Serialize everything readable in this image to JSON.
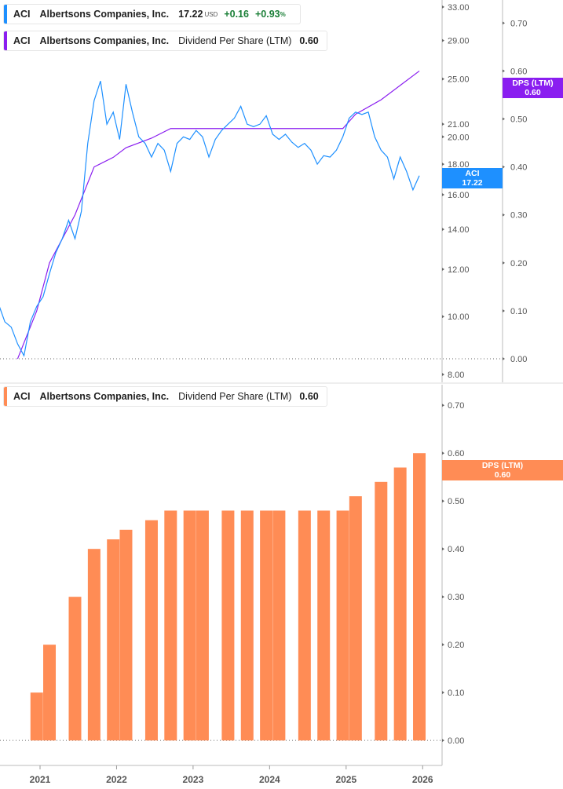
{
  "legend_price": {
    "ticker": "ACI",
    "company": "Albertsons Companies, Inc.",
    "price": "17.22",
    "currency": "USD",
    "change": "+0.16",
    "change_pct": "+0.93",
    "pct_sign": "%",
    "color": "#1e90ff"
  },
  "legend_dps_top": {
    "ticker": "ACI",
    "company": "Albertsons Companies, Inc.",
    "metric": "Dividend Per Share (LTM)",
    "value": "0.60",
    "color": "#8a1ef0"
  },
  "legend_dps_bottom": {
    "ticker": "ACI",
    "company": "Albertsons Companies, Inc.",
    "metric": "Dividend Per Share (LTM)",
    "value": "0.60",
    "color": "#ff8c55"
  },
  "tags": {
    "price": {
      "label": "ACI",
      "value": "17.22"
    },
    "dps_top": {
      "label": "DPS (LTM)",
      "value": "0.60"
    },
    "dps_bottom": {
      "label": "DPS (LTM)",
      "value": "0.60"
    }
  },
  "chart_data": [
    {
      "type": "line",
      "panel": "top",
      "scale": "log",
      "ylim": [
        7.76,
        33.9
      ],
      "yticks": [
        "33.00",
        "29.00",
        "25.00",
        "21.00",
        "20.00",
        "18.00",
        "16.00",
        "14.00",
        "12.00",
        "10.00",
        "8.00"
      ],
      "series": [
        {
          "name": "ACI",
          "color": "#1e90ff",
          "points": [
            [
              "2020-06",
              10.5
            ],
            [
              "2020-07",
              9.8
            ],
            [
              "2020-08",
              9.6
            ],
            [
              "2020-09",
              9.0
            ],
            [
              "2020-10",
              8.6
            ],
            [
              "2020-11",
              9.8
            ],
            [
              "2020-12",
              10.4
            ],
            [
              "2021-01",
              10.8
            ],
            [
              "2021-02",
              11.8
            ],
            [
              "2021-03",
              12.8
            ],
            [
              "2021-04",
              13.5
            ],
            [
              "2021-05",
              14.5
            ],
            [
              "2021-06",
              13.5
            ],
            [
              "2021-07",
              15.0
            ],
            [
              "2021-08",
              19.5
            ],
            [
              "2021-09",
              23.0
            ],
            [
              "2021-10",
              24.8
            ],
            [
              "2021-11",
              21.0
            ],
            [
              "2021-12",
              22.0
            ],
            [
              "2022-01",
              19.8
            ],
            [
              "2022-02",
              24.5
            ],
            [
              "2022-03",
              22.0
            ],
            [
              "2022-04",
              20.0
            ],
            [
              "2022-05",
              19.5
            ],
            [
              "2022-06",
              18.5
            ],
            [
              "2022-07",
              19.5
            ],
            [
              "2022-08",
              19.0
            ],
            [
              "2022-09",
              17.5
            ],
            [
              "2022-10",
              19.5
            ],
            [
              "2022-11",
              20.0
            ],
            [
              "2022-12",
              19.8
            ],
            [
              "2023-01",
              20.5
            ],
            [
              "2023-02",
              20.0
            ],
            [
              "2023-03",
              18.5
            ],
            [
              "2023-04",
              19.8
            ],
            [
              "2023-05",
              20.5
            ],
            [
              "2023-06",
              21.0
            ],
            [
              "2023-07",
              21.5
            ],
            [
              "2023-08",
              22.5
            ],
            [
              "2023-09",
              21.0
            ],
            [
              "2023-10",
              20.8
            ],
            [
              "2023-11",
              21.0
            ],
            [
              "2023-12",
              21.7
            ],
            [
              "2024-01",
              20.2
            ],
            [
              "2024-02",
              19.8
            ],
            [
              "2024-03",
              20.2
            ],
            [
              "2024-04",
              19.6
            ],
            [
              "2024-05",
              19.2
            ],
            [
              "2024-06",
              19.5
            ],
            [
              "2024-07",
              19.0
            ],
            [
              "2024-08",
              18.0
            ],
            [
              "2024-09",
              18.6
            ],
            [
              "2024-10",
              18.5
            ],
            [
              "2024-11",
              19.0
            ],
            [
              "2024-12",
              20.0
            ],
            [
              "2025-01",
              21.5
            ],
            [
              "2025-02",
              22.0
            ],
            [
              "2025-03",
              21.8
            ],
            [
              "2025-04",
              22.0
            ],
            [
              "2025-05",
              20.0
            ],
            [
              "2025-06",
              19.0
            ],
            [
              "2025-07",
              18.5
            ],
            [
              "2025-08",
              17.0
            ],
            [
              "2025-09",
              18.5
            ],
            [
              "2025-10",
              17.5
            ],
            [
              "2025-11",
              16.3
            ],
            [
              "2025-12",
              17.22
            ]
          ]
        }
      ]
    },
    {
      "type": "line",
      "panel": "top",
      "axis": "right",
      "ylim": [
        -0.049,
        0.748
      ],
      "yticks": [
        "0.70",
        "0.60",
        "0.50",
        "0.40",
        "0.30",
        "0.20",
        "0.10",
        "0.00"
      ],
      "series": [
        {
          "name": "DPS (LTM)",
          "color": "#8a1ef0",
          "points": [
            [
              "2020-09",
              0.0
            ],
            [
              "2020-12",
              0.1
            ],
            [
              "2021-02",
              0.2
            ],
            [
              "2021-06",
              0.3
            ],
            [
              "2021-09",
              0.4
            ],
            [
              "2021-12",
              0.42
            ],
            [
              "2022-02",
              0.44
            ],
            [
              "2022-06",
              0.46
            ],
            [
              "2022-09",
              0.48
            ],
            [
              "2022-12",
              0.48
            ],
            [
              "2023-02",
              0.48
            ],
            [
              "2023-06",
              0.48
            ],
            [
              "2023-09",
              0.48
            ],
            [
              "2023-12",
              0.48
            ],
            [
              "2024-02",
              0.48
            ],
            [
              "2024-06",
              0.48
            ],
            [
              "2024-09",
              0.48
            ],
            [
              "2024-12",
              0.48
            ],
            [
              "2025-02",
              0.51
            ],
            [
              "2025-06",
              0.54
            ],
            [
              "2025-09",
              0.57
            ],
            [
              "2025-12",
              0.6
            ]
          ]
        }
      ]
    },
    {
      "type": "bar",
      "panel": "bottom",
      "ylim": [
        -0.044,
        0.743
      ],
      "yticks": [
        "0.70",
        "0.60",
        "0.50",
        "0.40",
        "0.30",
        "0.20",
        "0.10",
        "0.00"
      ],
      "color": "#ff8c55",
      "categories": [
        "2020-12",
        "2021-02",
        "2021-06",
        "2021-09",
        "2021-12",
        "2022-02",
        "2022-06",
        "2022-09",
        "2022-12",
        "2023-02",
        "2023-06",
        "2023-09",
        "2023-12",
        "2024-02",
        "2024-06",
        "2024-09",
        "2024-12",
        "2025-02",
        "2025-06",
        "2025-09",
        "2025-12"
      ],
      "values": [
        0.1,
        0.2,
        0.3,
        0.4,
        0.42,
        0.44,
        0.46,
        0.48,
        0.48,
        0.48,
        0.48,
        0.48,
        0.48,
        0.48,
        0.48,
        0.48,
        0.48,
        0.51,
        0.54,
        0.57,
        0.6
      ]
    }
  ],
  "xaxis": {
    "ticks": [
      "2021",
      "2022",
      "2023",
      "2024",
      "2025",
      "2026"
    ]
  }
}
